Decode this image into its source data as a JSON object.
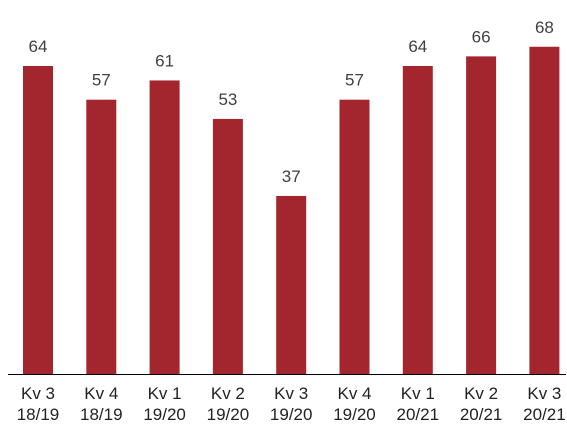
{
  "chart_data": {
    "type": "bar",
    "categories": [
      [
        "Kv 3",
        "18/19"
      ],
      [
        "Kv 4",
        "18/19"
      ],
      [
        "Kv 1",
        "19/20"
      ],
      [
        "Kv 2",
        "19/20"
      ],
      [
        "Kv 3",
        "19/20"
      ],
      [
        "Kv 4",
        "19/20"
      ],
      [
        "Kv 1",
        "20/21"
      ],
      [
        "Kv 2",
        "20/21"
      ],
      [
        "Kv 3",
        "20/21"
      ]
    ],
    "values": [
      64,
      57,
      61,
      53,
      37,
      57,
      64,
      66,
      68
    ],
    "ylim": [
      0,
      78
    ],
    "grid": false,
    "legend": "none",
    "colors": {
      "bar": "#a3262f",
      "axis": "#000000",
      "value_text": "#404040",
      "tick_text": "#222222"
    }
  }
}
